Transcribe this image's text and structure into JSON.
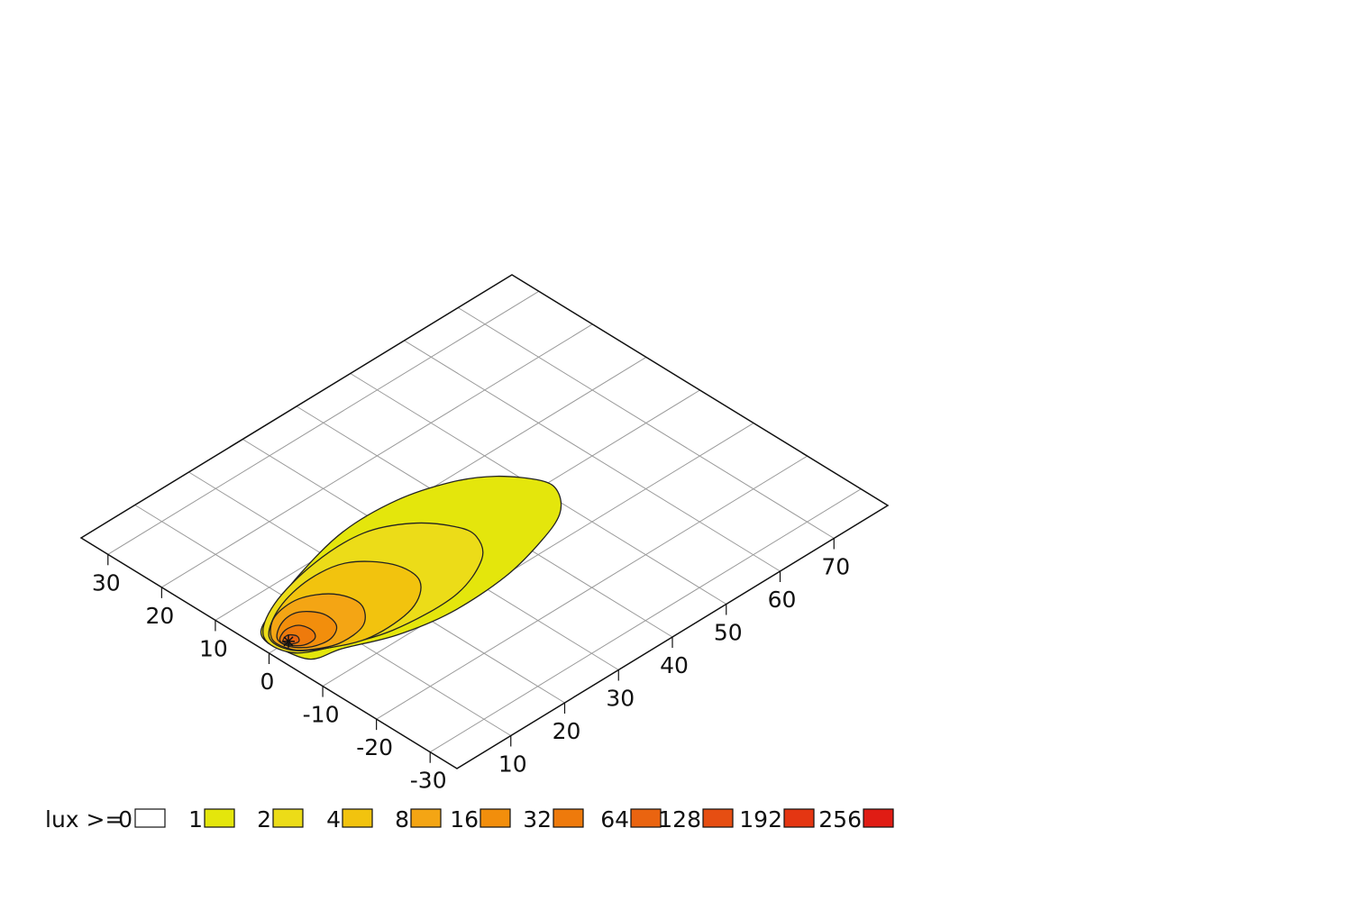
{
  "chart_data": {
    "type": "isolux",
    "xlim": [
      0,
      80
    ],
    "ylim": [
      -35,
      35
    ],
    "xticks": [
      10,
      20,
      30,
      40,
      50,
      60,
      70
    ],
    "yticks": [
      30,
      20,
      10,
      0,
      -10,
      -20,
      -30
    ],
    "grid": true,
    "legend_label": "lux >=",
    "levels": [
      0,
      1,
      2,
      4,
      8,
      16,
      32,
      64,
      128,
      192,
      256
    ],
    "level_colors": [
      "#ffffff",
      "#e4e60c",
      "#ecdc18",
      "#f2c30e",
      "#f4a514",
      "#f28e0c",
      "#ee7a0c",
      "#ea6410",
      "#e64e12",
      "#e43612",
      "#e01c14"
    ],
    "luminaire": {
      "x": 3.6,
      "y": 0
    },
    "contours": [
      {
        "level": 1,
        "x": [
          2.7,
          6.3,
          14.3,
          25.3,
          35.1,
          42.9,
          48.0,
          51.5,
          51.4,
          48.2,
          42.4,
          33.6,
          23.1,
          14.6,
          7.5,
          3.0,
          1.7,
          1.5
        ],
        "y": [
          4.2,
          6.0,
          9.0,
          11.6,
          11.4,
          9.1,
          5.8,
          1.0,
          -2.2,
          -5.8,
          -8.2,
          -10.3,
          -10.7,
          -9.1,
          -6.1,
          -4.8,
          -0.3,
          2.1
        ]
      },
      {
        "level": 2,
        "x": [
          2,
          8,
          18,
          27,
          33,
          36.5,
          37,
          34,
          26,
          15,
          7,
          2.2
        ],
        "y": [
          3,
          7,
          9.5,
          9.5,
          6.5,
          2,
          -1.5,
          -5.5,
          -8.5,
          -8,
          -5,
          -2
        ]
      },
      {
        "level": 4,
        "x": [
          2.5,
          8,
          15,
          21,
          25,
          25,
          20,
          12,
          6,
          2.5
        ],
        "y": [
          2.5,
          6,
          7.5,
          6.5,
          2,
          -3,
          -6.5,
          -7,
          -4.5,
          -1.5
        ]
      },
      {
        "level": 8,
        "x": [
          2.5,
          6,
          11,
          15,
          16,
          13,
          8,
          4,
          2.5
        ],
        "y": [
          2,
          5,
          5.5,
          3,
          -1,
          -4.5,
          -5,
          -3,
          -1
        ]
      },
      {
        "level": 16,
        "x": [
          3,
          6,
          9,
          11,
          10.5,
          8,
          5,
          3
        ],
        "y": [
          1.5,
          3.5,
          3.5,
          1,
          -2,
          -3.5,
          -3,
          -1
        ]
      },
      {
        "level": 32,
        "x": [
          3,
          5,
          7,
          7.5,
          6.5,
          4.5,
          3
        ],
        "y": [
          1,
          2,
          1.5,
          -0.5,
          -2,
          -2,
          -0.5
        ]
      },
      {
        "level": 64,
        "x": [
          3.2,
          4.5,
          5.2,
          4.5,
          3.3
        ],
        "y": [
          0.6,
          1,
          0,
          -1,
          -0.5
        ]
      }
    ]
  }
}
